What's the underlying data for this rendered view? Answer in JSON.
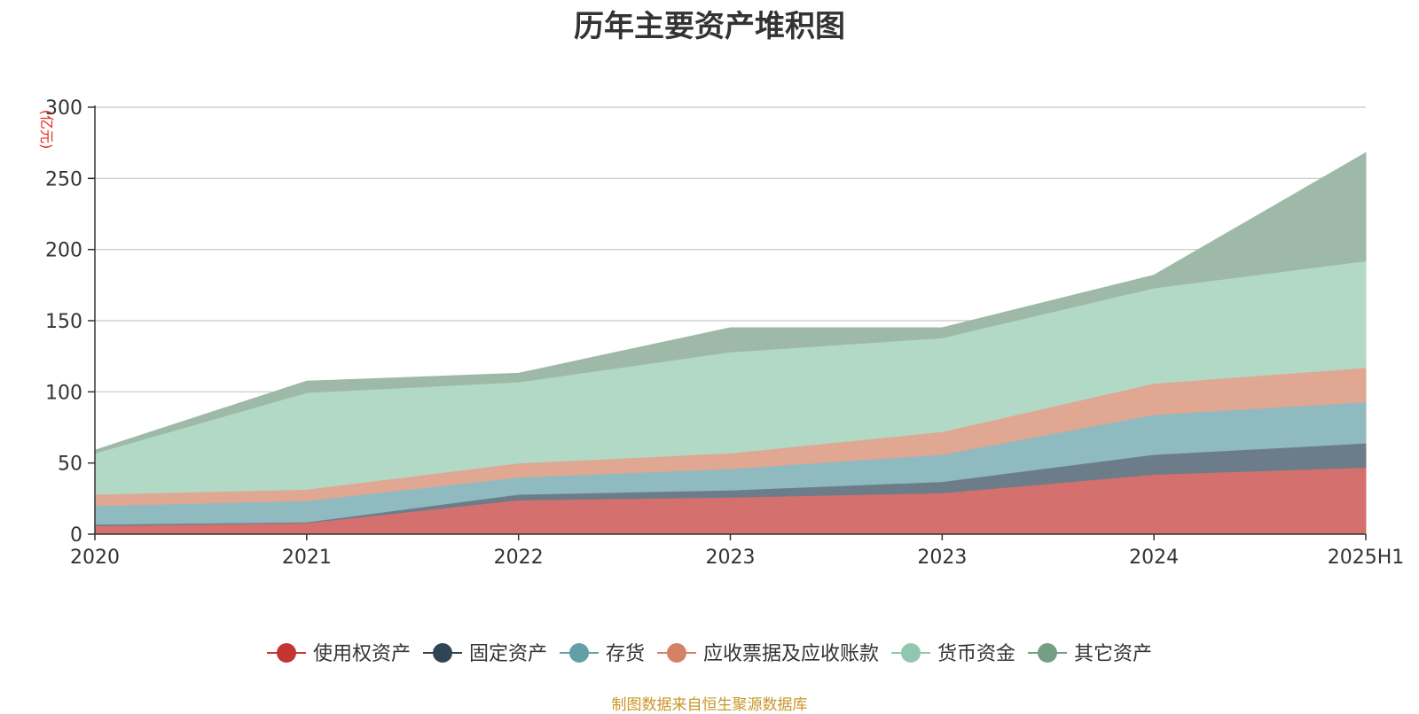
{
  "chart_data": {
    "type": "area",
    "stacked": true,
    "title": "历年主要资产堆积图",
    "unit": "(亿元)",
    "categories": [
      "2020",
      "2021",
      "2022",
      "2023",
      "2023",
      "2024",
      "2025H1"
    ],
    "ylim": [
      0,
      300
    ],
    "yticks": [
      0,
      50,
      100,
      150,
      200,
      250,
      300
    ],
    "grid": true,
    "legend_position": "bottom",
    "series": [
      {
        "name": "使用权资产",
        "color": "#c23531",
        "fill": "#d4706d",
        "values": [
          6,
          8,
          24,
          26,
          29,
          42,
          47
        ]
      },
      {
        "name": "固定资产",
        "color": "#2f4554",
        "fill": "#6c7d89",
        "values": [
          1,
          0.5,
          4,
          5,
          8,
          14,
          17
        ]
      },
      {
        "name": "存货",
        "color": "#61a0a8",
        "fill": "#8fbbc0",
        "values": [
          13,
          15,
          12,
          15,
          19,
          28,
          29
        ]
      },
      {
        "name": "应收票据及应收账款",
        "color": "#d48265",
        "fill": "#e0a792",
        "values": [
          8,
          8,
          10,
          11,
          16,
          22,
          24
        ]
      },
      {
        "name": "货币资金",
        "color": "#91c7ae",
        "fill": "#b2d8c6",
        "values": [
          29,
          68,
          57,
          71,
          66,
          67,
          75
        ]
      },
      {
        "name": "其它资产",
        "color": "#749f83",
        "fill": "#9eb9a7",
        "values": [
          2,
          8,
          6,
          17,
          7,
          9,
          76
        ]
      }
    ]
  },
  "footer": {
    "source": "制图数据来自恒生聚源数据库"
  }
}
